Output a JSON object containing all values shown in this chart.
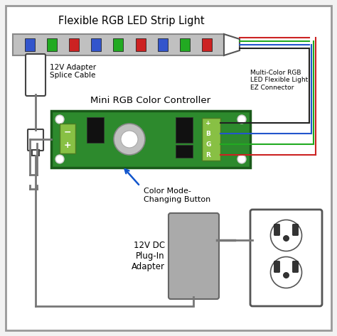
{
  "bg_color": "#f2f2f2",
  "border_color": "#999999",
  "title": "Flexible RGB LED Strip Light",
  "title_fontsize": 10.5,
  "controller_label": "Mini RGB Color Controller",
  "controller_label_fontsize": 9.5,
  "connector_label": "Multi-Color RGB\nLED Flexible Light\nEZ Connector",
  "adapter_label": "12V Adapter\nSplice Cable",
  "dc_label": "12V DC\nPlug-In\nAdapter",
  "button_label": "Color Mode-\nChanging Button",
  "strip_color": "#c0c0c0",
  "strip_border": "#888888",
  "led_colors": [
    "#3355cc",
    "#22aa22",
    "#cc2222",
    "#3355cc",
    "#22aa22",
    "#cc2222",
    "#3355cc",
    "#22aa22",
    "#cc2222"
  ],
  "pcb_color": "#2d8a2d",
  "pcb_border": "#1a5a1a",
  "wire_black": "#222222",
  "wire_blue": "#2255cc",
  "wire_green": "#22aa22",
  "wire_red": "#cc2222",
  "wire_gray": "#777777",
  "terminal_green": "#88c044",
  "adapter_gray": "#aaaaaa",
  "splice_white": "#ffffff",
  "outlet_white": "#ffffff"
}
